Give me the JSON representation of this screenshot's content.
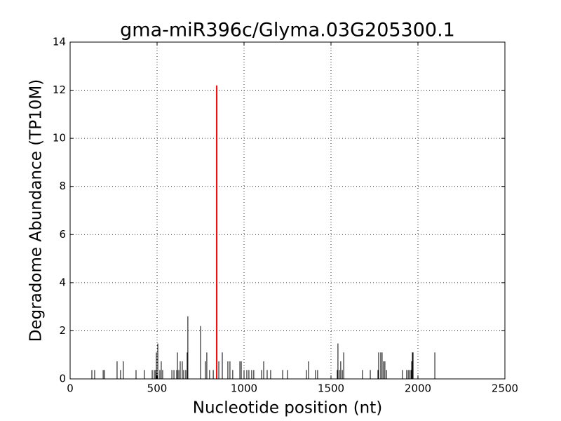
{
  "chart_data": {
    "type": "stem",
    "title": "gma-miR396c/Glyma.03G205300.1",
    "xlabel": "Nucleotide position (nt)",
    "ylabel": "Degradome Abundance (TP10M)",
    "xlim": [
      0,
      2500
    ],
    "xticks": [
      0,
      500,
      1000,
      1500,
      2000,
      2500
    ],
    "ylim": [
      0,
      14
    ],
    "yticks": [
      0,
      2,
      4,
      6,
      8,
      10,
      12,
      14
    ],
    "grid": true,
    "series": [
      {
        "color": "#000000",
        "x": [
          125,
          141,
          190,
          198,
          270,
          290,
          306,
          379,
          427,
          472,
          484,
          492,
          496,
          504,
          516,
          524,
          532,
          585,
          597,
          613,
          617,
          625,
          633,
          645,
          653,
          665,
          673,
          677,
          750,
          778,
          786,
          802,
          823,
          855,
          875,
          907,
          919,
          935,
          976,
          984,
          1000,
          1016,
          1028,
          1044,
          1056,
          1101,
          1113,
          1133,
          1153,
          1222,
          1250,
          1359,
          1371,
          1411,
          1423,
          1536,
          1540,
          1548,
          1556,
          1565,
          1573,
          1681,
          1726,
          1770,
          1774,
          1786,
          1794,
          1802,
          1810,
          1819,
          1911,
          1935,
          1944,
          1952,
          1960,
          1964,
          1968,
          1972,
          2097
        ],
        "values": [
          0.37,
          0.37,
          0.37,
          0.37,
          0.73,
          0.37,
          0.73,
          0.37,
          0.37,
          0.37,
          0.37,
          0.37,
          1.1,
          1.47,
          0.37,
          0.73,
          0.37,
          0.37,
          0.37,
          0.37,
          1.1,
          0.37,
          0.73,
          0.73,
          0.37,
          0.37,
          1.1,
          2.6,
          2.2,
          0.73,
          1.1,
          0.37,
          0.37,
          0.73,
          1.1,
          0.73,
          0.73,
          0.37,
          0.73,
          0.73,
          0.37,
          0.37,
          0.37,
          0.37,
          0.37,
          0.37,
          0.73,
          0.37,
          0.37,
          0.37,
          0.37,
          0.37,
          0.73,
          0.37,
          0.37,
          0.37,
          1.47,
          0.37,
          0.73,
          0.37,
          1.1,
          0.37,
          0.37,
          0.37,
          1.1,
          1.1,
          1.1,
          0.73,
          0.73,
          0.37,
          0.37,
          0.37,
          0.37,
          0.37,
          0.37,
          0.73,
          1.1,
          1.1,
          1.1
        ]
      },
      {
        "color": "#ff0000",
        "x": [
          843
        ],
        "values": [
          12.2
        ]
      }
    ]
  }
}
